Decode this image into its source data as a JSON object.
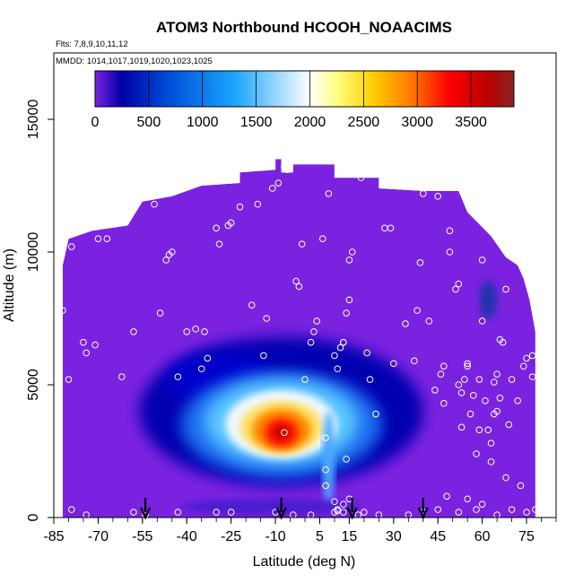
{
  "chart_data": {
    "type": "heatmap",
    "title": "ATOM3 Northbound HCOOH_NOAACIMS",
    "subtitle_flights": "Flts: 7,8,9,10,11,12",
    "subtitle_dates": "MMDD: 1014,1017,1019,1020,1023,1025",
    "xlabel": "Latitude (deg N)",
    "ylabel": "Altitude (m)",
    "xlim": [
      -85,
      85
    ],
    "ylim": [
      0,
      17500
    ],
    "xticks": [
      "-85",
      "-70",
      "-55",
      "-40",
      "-25",
      "-10",
      "5",
      "15",
      "30",
      "45",
      "60",
      "75"
    ],
    "xtick_values": [
      -85,
      -70,
      -55,
      -40,
      -25,
      -10,
      5,
      15,
      30,
      45,
      60,
      75
    ],
    "yticks": [
      "0",
      "5000",
      "10000",
      "15000"
    ],
    "ytick_values": [
      0,
      5000,
      10000,
      15000
    ],
    "colorbar": {
      "range": [
        0,
        3900
      ],
      "tick_labels": [
        "0",
        "500",
        "1000",
        "1500",
        "2000",
        "2500",
        "3000",
        "3500"
      ],
      "tick_values": [
        0,
        500,
        1000,
        1500,
        2000,
        2500,
        3000,
        3500
      ],
      "colors": [
        "#7a22e0",
        "#0000aa",
        "#0050d8",
        "#1aa4ff",
        "#ffffff",
        "#ffff80",
        "#ffcc00",
        "#ff7700",
        "#ff0000",
        "#bb0000",
        "#8b2222"
      ],
      "stops": [
        0,
        250,
        700,
        1300,
        2000,
        2250,
        2600,
        2950,
        3300,
        3650,
        3900
      ]
    },
    "boundary": [
      [
        -82,
        0
      ],
      [
        -82,
        9500
      ],
      [
        -80,
        10500
      ],
      [
        -72,
        10800
      ],
      [
        -60,
        11000
      ],
      [
        -55,
        11900
      ],
      [
        -45,
        12100
      ],
      [
        -35,
        12500
      ],
      [
        -22,
        12600
      ],
      [
        -22,
        13000
      ],
      [
        -10,
        13100
      ],
      [
        -10,
        13500
      ],
      [
        -8,
        13500
      ],
      [
        -8,
        13000
      ],
      [
        -4,
        13000
      ],
      [
        -4,
        13300
      ],
      [
        10,
        13300
      ],
      [
        10,
        12800
      ],
      [
        25,
        12800
      ],
      [
        25,
        12400
      ],
      [
        40,
        12300
      ],
      [
        52,
        12300
      ],
      [
        55,
        11500
      ],
      [
        63,
        10600
      ],
      [
        68,
        9800
      ],
      [
        72,
        9500
      ],
      [
        74,
        9000
      ],
      [
        76,
        8200
      ],
      [
        78,
        7000
      ],
      [
        78,
        0
      ]
    ],
    "sample_points": [
      [
        -79,
        10200
      ],
      [
        -82,
        7800
      ],
      [
        -80,
        5200
      ],
      [
        -75,
        6600
      ],
      [
        -74,
        6200
      ],
      [
        -71,
        6500
      ],
      [
        -70,
        10500
      ],
      [
        -67,
        10500
      ],
      [
        -62,
        5300
      ],
      [
        -58,
        7000
      ],
      [
        -51,
        11800
      ],
      [
        -49,
        7700
      ],
      [
        -47,
        9700
      ],
      [
        -46,
        9900
      ],
      [
        -45,
        10000
      ],
      [
        -43,
        5300
      ],
      [
        -40,
        7000
      ],
      [
        -37,
        7100
      ],
      [
        -35,
        5600
      ],
      [
        -34,
        7000
      ],
      [
        -33,
        6000
      ],
      [
        -30,
        10900
      ],
      [
        -29,
        10300
      ],
      [
        -26,
        11000
      ],
      [
        -25,
        11100
      ],
      [
        -22,
        11700
      ],
      [
        -18,
        8000
      ],
      [
        -16,
        11800
      ],
      [
        -14,
        6100
      ],
      [
        -13,
        7500
      ],
      [
        -11,
        12400
      ],
      [
        -9,
        12600
      ],
      [
        -7,
        13200
      ],
      [
        -6,
        13100
      ],
      [
        -3,
        8900
      ],
      [
        -2,
        8700
      ],
      [
        -1,
        10300
      ],
      [
        0,
        5200
      ],
      [
        2,
        6600
      ],
      [
        3,
        7000
      ],
      [
        4,
        7400
      ],
      [
        6,
        10500
      ],
      [
        8,
        12200
      ],
      [
        10,
        6100
      ],
      [
        11,
        5600
      ],
      [
        12,
        6400
      ],
      [
        13,
        6600
      ],
      [
        13,
        6600
      ],
      [
        14,
        7700
      ],
      [
        15,
        8200
      ],
      [
        15,
        9700
      ],
      [
        16,
        10000
      ],
      [
        19,
        12800
      ],
      [
        21,
        6200
      ],
      [
        22,
        5200
      ],
      [
        24,
        3900
      ],
      [
        27,
        10900
      ],
      [
        29,
        10900
      ],
      [
        30,
        5800
      ],
      [
        34,
        7300
      ],
      [
        37,
        5900
      ],
      [
        38,
        7800
      ],
      [
        39,
        9600
      ],
      [
        40,
        12200
      ],
      [
        42,
        7400
      ],
      [
        44,
        4800
      ],
      [
        45,
        12100
      ],
      [
        46,
        5400
      ],
      [
        47,
        4300
      ],
      [
        47,
        5700
      ],
      [
        49,
        10000
      ],
      [
        49,
        10800
      ],
      [
        51,
        8600
      ],
      [
        52,
        8800
      ],
      [
        52,
        5000
      ],
      [
        53,
        4700
      ],
      [
        53,
        3400
      ],
      [
        54,
        5200
      ],
      [
        55,
        5700
      ],
      [
        55,
        5800
      ],
      [
        56,
        3900
      ],
      [
        57,
        4600
      ],
      [
        58,
        2400
      ],
      [
        59,
        5200
      ],
      [
        59,
        3300
      ],
      [
        60,
        7400
      ],
      [
        60,
        9700
      ],
      [
        61,
        4400
      ],
      [
        62,
        3300
      ],
      [
        63,
        2100
      ],
      [
        63,
        2800
      ],
      [
        64,
        3900
      ],
      [
        64,
        5100
      ],
      [
        65,
        5400
      ],
      [
        65,
        4000
      ],
      [
        66,
        6700
      ],
      [
        66,
        4500
      ],
      [
        67,
        6600
      ],
      [
        68,
        8600
      ],
      [
        68,
        1500
      ],
      [
        69,
        3500
      ],
      [
        70,
        5200
      ],
      [
        72,
        4400
      ],
      [
        73,
        1200
      ],
      [
        74,
        5700
      ],
      [
        75,
        6000
      ],
      [
        77,
        6100
      ],
      [
        77,
        5300
      ],
      [
        78,
        7800
      ],
      [
        78,
        8800
      ],
      [
        -79,
        300
      ],
      [
        -74,
        100
      ],
      [
        -58,
        200
      ],
      [
        -54,
        100
      ],
      [
        -43,
        200
      ],
      [
        -30,
        200
      ],
      [
        -25,
        200
      ],
      [
        -10,
        200
      ],
      [
        -4,
        100
      ],
      [
        2,
        100
      ],
      [
        7,
        1800
      ],
      [
        7,
        1200
      ],
      [
        10,
        600
      ],
      [
        10,
        200
      ],
      [
        11,
        300
      ],
      [
        11,
        250
      ],
      [
        13,
        200
      ],
      [
        13,
        500
      ],
      [
        15,
        700
      ],
      [
        18,
        100
      ],
      [
        20,
        200
      ],
      [
        25,
        100
      ],
      [
        35,
        100
      ],
      [
        40,
        200
      ],
      [
        45,
        300
      ],
      [
        48,
        800
      ],
      [
        52,
        200
      ],
      [
        55,
        700
      ],
      [
        58,
        300
      ],
      [
        60,
        500
      ],
      [
        65,
        100
      ],
      [
        70,
        300
      ],
      [
        75,
        200
      ],
      [
        78,
        300
      ],
      [
        7,
        3000
      ],
      [
        14,
        2200
      ],
      [
        -7,
        3200
      ]
    ],
    "arrows_at_latitude": [
      -54,
      -8,
      16,
      40
    ]
  }
}
